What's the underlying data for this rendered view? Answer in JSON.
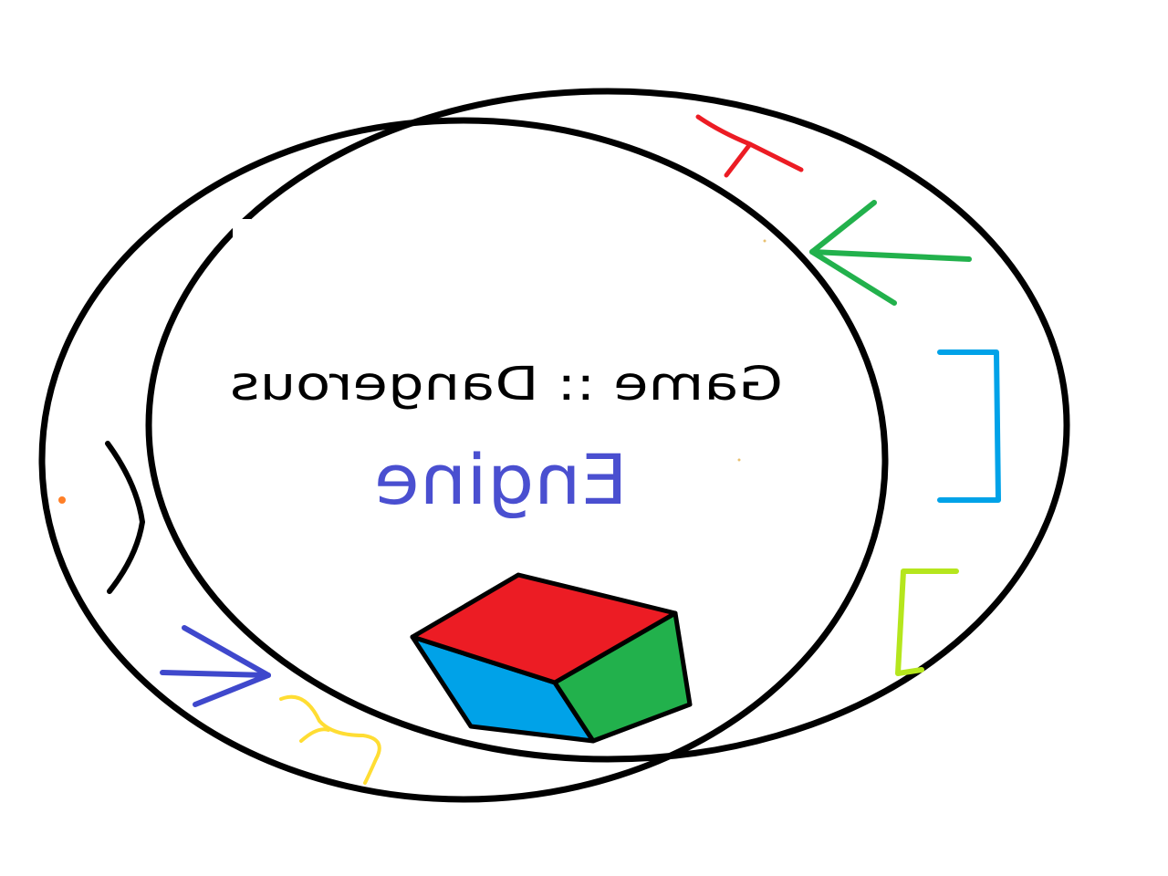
{
  "logo": {
    "title_text": "Game :: Dangerous",
    "subtitle_text": "Engine",
    "colors": {
      "background": "#ffffff",
      "outline": "#000000",
      "title": "#000000",
      "subtitle": "#4a4fd0",
      "cube_top": "#ec1c24",
      "cube_left": "#00a2e8",
      "cube_right": "#22b14c",
      "stroke_red": "#ec1c24",
      "stroke_green": "#22b14c",
      "stroke_cyan": "#00a2e8",
      "stroke_lime": "#b5e61d",
      "stroke_blue": "#3f48cc",
      "stroke_yellow": "#ffdd33",
      "dot_orange": "#ff7f27"
    }
  }
}
